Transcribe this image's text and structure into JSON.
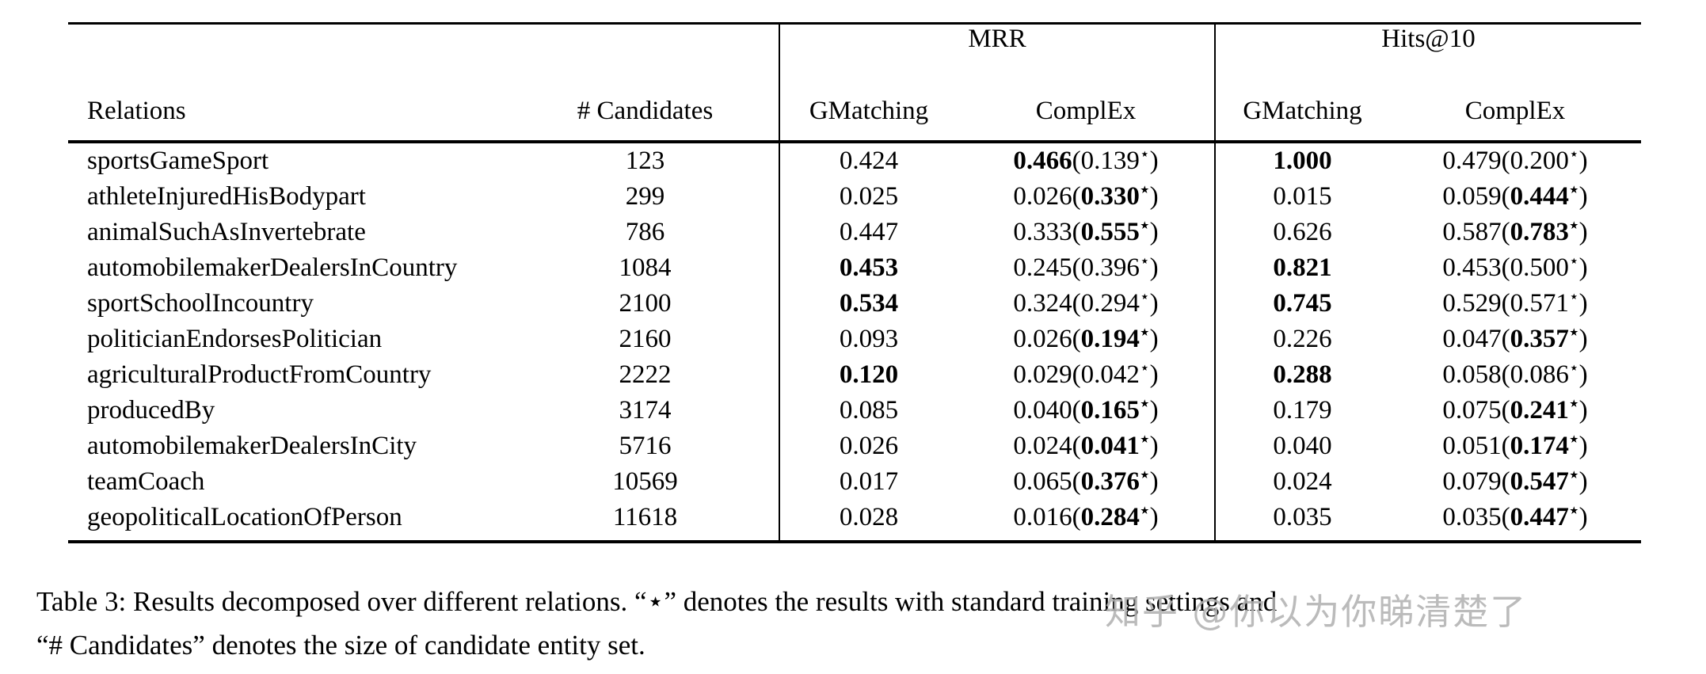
{
  "table": {
    "group_headers": [
      {
        "label": "MRR"
      },
      {
        "label": "Hits@10"
      }
    ],
    "col_headers": {
      "relations": "Relations",
      "candidates": "# Candidates",
      "gmatching": "GMatching",
      "complex": "ComplEx"
    },
    "star": "⋆",
    "rows": [
      {
        "relation": "sportsGameSport",
        "candidates": "123",
        "cells": [
          {
            "value": "0.424",
            "bold": false
          },
          {
            "value": "0.466",
            "bold": true,
            "paren": "0.139",
            "paren_bold": false
          },
          {
            "value": "1.000",
            "bold": true
          },
          {
            "value": "0.479",
            "bold": false,
            "paren": "0.200",
            "paren_bold": false
          }
        ]
      },
      {
        "relation": "athleteInjuredHisBodypart",
        "candidates": "299",
        "cells": [
          {
            "value": "0.025",
            "bold": false
          },
          {
            "value": "0.026",
            "bold": false,
            "paren": "0.330",
            "paren_bold": true
          },
          {
            "value": "0.015",
            "bold": false
          },
          {
            "value": "0.059",
            "bold": false,
            "paren": "0.444",
            "paren_bold": true
          }
        ]
      },
      {
        "relation": "animalSuchAsInvertebrate",
        "candidates": "786",
        "cells": [
          {
            "value": "0.447",
            "bold": false
          },
          {
            "value": "0.333",
            "bold": false,
            "paren": "0.555",
            "paren_bold": true
          },
          {
            "value": "0.626",
            "bold": false
          },
          {
            "value": "0.587",
            "bold": false,
            "paren": "0.783",
            "paren_bold": true
          }
        ]
      },
      {
        "relation": "automobilemakerDealersInCountry",
        "candidates": "1084",
        "cells": [
          {
            "value": "0.453",
            "bold": true
          },
          {
            "value": "0.245",
            "bold": false,
            "paren": "0.396",
            "paren_bold": false
          },
          {
            "value": "0.821",
            "bold": true
          },
          {
            "value": "0.453",
            "bold": false,
            "paren": "0.500",
            "paren_bold": false
          }
        ]
      },
      {
        "relation": "sportSchoolIncountry",
        "candidates": "2100",
        "cells": [
          {
            "value": "0.534",
            "bold": true
          },
          {
            "value": "0.324",
            "bold": false,
            "paren": "0.294",
            "paren_bold": false
          },
          {
            "value": "0.745",
            "bold": true
          },
          {
            "value": "0.529",
            "bold": false,
            "paren": "0.571",
            "paren_bold": false
          }
        ]
      },
      {
        "relation": "politicianEndorsesPolitician",
        "candidates": "2160",
        "cells": [
          {
            "value": "0.093",
            "bold": false
          },
          {
            "value": "0.026",
            "bold": false,
            "paren": "0.194",
            "paren_bold": true
          },
          {
            "value": "0.226",
            "bold": false
          },
          {
            "value": "0.047",
            "bold": false,
            "paren": "0.357",
            "paren_bold": true
          }
        ]
      },
      {
        "relation": "agriculturalProductFromCountry",
        "candidates": "2222",
        "cells": [
          {
            "value": "0.120",
            "bold": true
          },
          {
            "value": "0.029",
            "bold": false,
            "paren": "0.042",
            "paren_bold": false
          },
          {
            "value": "0.288",
            "bold": true
          },
          {
            "value": "0.058",
            "bold": false,
            "paren": "0.086",
            "paren_bold": false
          }
        ]
      },
      {
        "relation": "producedBy",
        "candidates": "3174",
        "cells": [
          {
            "value": "0.085",
            "bold": false
          },
          {
            "value": "0.040",
            "bold": false,
            "paren": "0.165",
            "paren_bold": true
          },
          {
            "value": "0.179",
            "bold": false
          },
          {
            "value": "0.075",
            "bold": false,
            "paren": "0.241",
            "paren_bold": true
          }
        ]
      },
      {
        "relation": "automobilemakerDealersInCity",
        "candidates": "5716",
        "cells": [
          {
            "value": "0.026",
            "bold": false
          },
          {
            "value": "0.024",
            "bold": false,
            "paren": "0.041",
            "paren_bold": true
          },
          {
            "value": "0.040",
            "bold": false
          },
          {
            "value": "0.051",
            "bold": false,
            "paren": "0.174",
            "paren_bold": true
          }
        ]
      },
      {
        "relation": "teamCoach",
        "candidates": "10569",
        "cells": [
          {
            "value": "0.017",
            "bold": false
          },
          {
            "value": "0.065",
            "bold": false,
            "paren": "0.376",
            "paren_bold": true
          },
          {
            "value": "0.024",
            "bold": false
          },
          {
            "value": "0.079",
            "bold": false,
            "paren": "0.547",
            "paren_bold": true
          }
        ]
      },
      {
        "relation": "geopoliticalLocationOfPerson",
        "candidates": "11618",
        "cells": [
          {
            "value": "0.028",
            "bold": false
          },
          {
            "value": "0.016",
            "bold": false,
            "paren": "0.284",
            "paren_bold": true
          },
          {
            "value": "0.035",
            "bold": false
          },
          {
            "value": "0.035",
            "bold": false,
            "paren": "0.447",
            "paren_bold": true
          }
        ]
      }
    ]
  },
  "caption": {
    "line1": "Table 3: Results decomposed over different relations. “⋆” denotes the results with standard training settings and",
    "line2": "“# Candidates” denotes the size of candidate entity set."
  },
  "watermark": {
    "text": "知乎 @你以为你睇清楚了"
  }
}
